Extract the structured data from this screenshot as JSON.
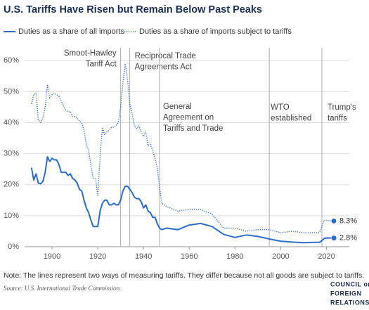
{
  "chart_data": {
    "type": "line",
    "title": "U.S. Tariffs Have Risen but Remain Below Past Peaks",
    "note": "Note: The lines represent two ways of measuring tariffs. They differ because not all goods are subject to tariffs.",
    "source": "Source: U.S. International Trade Commission.",
    "logo": [
      "COUNCIL on",
      "FOREIGN",
      "RELATIONS"
    ],
    "x": [
      1891,
      1892,
      1893,
      1894,
      1895,
      1896,
      1897,
      1898,
      1899,
      1900,
      1901,
      1902,
      1903,
      1904,
      1905,
      1906,
      1907,
      1908,
      1909,
      1910,
      1911,
      1912,
      1913,
      1914,
      1915,
      1916,
      1917,
      1918,
      1919,
      1920,
      1921,
      1922,
      1923,
      1924,
      1925,
      1926,
      1927,
      1928,
      1929,
      1930,
      1931,
      1932,
      1933,
      1934,
      1935,
      1936,
      1937,
      1938,
      1939,
      1940,
      1941,
      1942,
      1943,
      1944,
      1945,
      1946,
      1947,
      1948,
      1950,
      1955,
      1960,
      1965,
      1970,
      1975,
      1980,
      1985,
      1990,
      1995,
      2000,
      2005,
      2010,
      2015,
      2017,
      2018,
      2019,
      2020,
      2022
    ],
    "series": [
      {
        "name": "Duties as a share of all imports",
        "color": "#2e6bc6",
        "style": "solid",
        "values": [
          25.5,
          21.5,
          23.5,
          20.5,
          20.3,
          21,
          24,
          29,
          27.5,
          28.5,
          28,
          28,
          26.5,
          24,
          24,
          24,
          23,
          23.5,
          22,
          21.5,
          20.5,
          18.5,
          18,
          15,
          12.5,
          11,
          8.5,
          6.5,
          6.5,
          6.5,
          11.5,
          14,
          15,
          15,
          13.5,
          13.5,
          14,
          13.5,
          13.5,
          15,
          18,
          19.5,
          19.5,
          18.5,
          17.5,
          16,
          15.5,
          15.5,
          14.5,
          12.5,
          13.5,
          11.5,
          11,
          9.5,
          9.5,
          7.5,
          6,
          5.5,
          6,
          5.5,
          7,
          7.5,
          6.5,
          4,
          3,
          3.8,
          3.3,
          2.5,
          1.8,
          1.5,
          1.3,
          1.4,
          1.4,
          2,
          2.7,
          2.8,
          2.8
        ],
        "value_labels": [
          null,
          null,
          null,
          null,
          null,
          null,
          null,
          null,
          null,
          null,
          null,
          null,
          null,
          null,
          null,
          null,
          null,
          null,
          null,
          null,
          null,
          null,
          null,
          null,
          null,
          null,
          null,
          null,
          null,
          null,
          null,
          null,
          null,
          null,
          null,
          null,
          null,
          null,
          null,
          null,
          null,
          null,
          null,
          null,
          null,
          null,
          null,
          null,
          null,
          null,
          null,
          null,
          null,
          null,
          null,
          null,
          null,
          null,
          null,
          null,
          null,
          null,
          null,
          null,
          null,
          null,
          null,
          null,
          null,
          null,
          null,
          null,
          null,
          null,
          null,
          null,
          "2.8%"
        ]
      },
      {
        "name": "Duties as a share of imports subject to tariffs",
        "color": "#2e6bc6",
        "style": "dotted",
        "values": [
          46,
          49,
          49.5,
          41,
          40,
          41.5,
          45,
          52,
          48,
          49,
          49.5,
          49,
          48.5,
          47,
          45.5,
          44,
          43.5,
          43.5,
          42,
          42,
          41.5,
          40.5,
          40,
          37.5,
          33,
          31,
          26,
          22,
          22,
          16.5,
          29,
          38.5,
          36,
          37,
          37.5,
          38.5,
          38.5,
          39,
          40,
          45,
          53,
          59,
          54,
          46,
          43,
          39,
          38,
          39,
          37,
          35.5,
          37,
          32.5,
          33,
          31,
          28.5,
          25.5,
          19,
          14,
          13,
          11.5,
          12,
          12,
          10.5,
          6,
          6,
          5,
          5.5,
          5.5,
          4.5,
          5,
          4.5,
          4.5,
          4.5,
          6.5,
          8.5,
          8.5,
          8.3
        ],
        "value_labels": [
          null,
          null,
          null,
          null,
          null,
          null,
          null,
          null,
          null,
          null,
          null,
          null,
          null,
          null,
          null,
          null,
          null,
          null,
          null,
          null,
          null,
          null,
          null,
          null,
          null,
          null,
          null,
          null,
          null,
          null,
          null,
          null,
          null,
          null,
          null,
          null,
          null,
          null,
          null,
          null,
          null,
          null,
          null,
          null,
          null,
          null,
          null,
          null,
          null,
          null,
          null,
          null,
          null,
          null,
          null,
          null,
          null,
          null,
          null,
          null,
          null,
          null,
          null,
          null,
          null,
          null,
          null,
          null,
          null,
          null,
          null,
          null,
          null,
          null,
          null,
          null,
          "8.3%"
        ]
      }
    ],
    "xlim": [
      1888,
      2030
    ],
    "xticks": [
      1900,
      1920,
      1940,
      1960,
      1980,
      2000,
      2020
    ],
    "ylim": [
      0,
      63
    ],
    "yticks": [
      {
        "value": 0,
        "label": "0%"
      },
      {
        "value": 10,
        "label": "10%"
      },
      {
        "value": 20,
        "label": "20%"
      },
      {
        "value": 30,
        "label": "30%"
      },
      {
        "value": 40,
        "label": "40%"
      },
      {
        "value": 50,
        "label": "50%"
      },
      {
        "value": 60,
        "label": "60%"
      }
    ],
    "grid": true,
    "annotations": [
      {
        "x": 1930,
        "text": [
          "Smoot-Hawley",
          "Tariff Act"
        ]
      },
      {
        "x": 1934,
        "text": [
          "Reciprocal Trade",
          "Agreements Act"
        ]
      },
      {
        "x": 1947,
        "text": [
          "General",
          "Agreement on",
          "Tariffs and Trade"
        ]
      },
      {
        "x": 1995,
        "text": [
          "WTO",
          "established"
        ]
      },
      {
        "x": 2018,
        "text": [
          "Trump's",
          "tariffs"
        ]
      }
    ]
  }
}
